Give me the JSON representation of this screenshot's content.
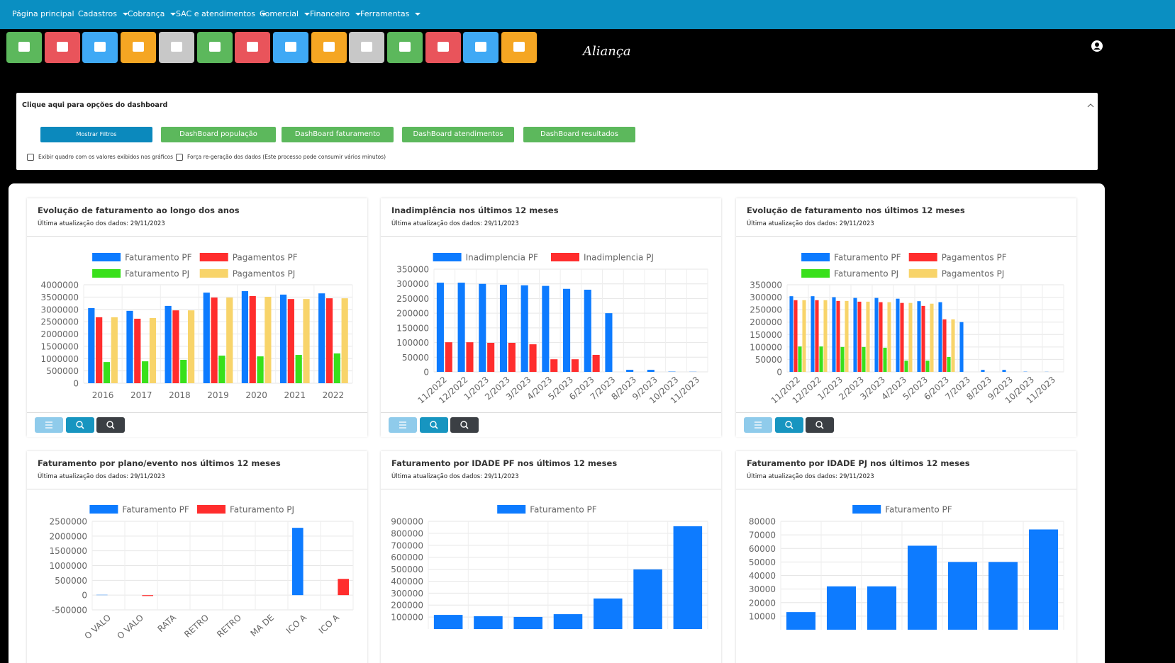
{
  "nav": {
    "items": [
      "Página principal",
      "Cadastros",
      "Cobrança",
      "SAC e atendimentos",
      "Comercial",
      "Financeiro",
      "Ferramentas"
    ]
  },
  "header": {
    "logo": "Aliança"
  },
  "panel": {
    "title": "Clique aqui para opções do dashboard",
    "buttons": [
      "Mostrar Filtros",
      "DashBoard população",
      "DashBoard faturamento",
      "DashBoard atendimentos",
      "DashBoard resultados"
    ],
    "checkboxes": [
      "Exibir quadro com os valores exibidos nos gráficos",
      "Força re-geração dos dados (Este processo pode consumir vários minutos)"
    ]
  },
  "chart_data": [
    {
      "type": "bar",
      "title": "Evolução de faturamento ao longo dos anos",
      "subtitle": "Última atualização dos dados: 29/11/2023",
      "categories": [
        "2016",
        "2017",
        "2018",
        "2019",
        "2020",
        "2021",
        "2022"
      ],
      "series": [
        {
          "name": "Faturamento PF",
          "color": "#0d7bff",
          "values": [
            3050000,
            2940000,
            3140000,
            3680000,
            3740000,
            3600000,
            3650000
          ]
        },
        {
          "name": "Pagamentos PF",
          "color": "#ff2d2d",
          "values": [
            2680000,
            2620000,
            2960000,
            3480000,
            3540000,
            3420000,
            3450000
          ]
        },
        {
          "name": "Faturamento PJ",
          "color": "#39e01b",
          "values": [
            860000,
            890000,
            950000,
            1120000,
            1090000,
            1150000,
            1210000
          ]
        },
        {
          "name": "Pagamentos PJ",
          "color": "#f8d46a",
          "values": [
            2680000,
            2650000,
            2960000,
            3480000,
            3510000,
            3420000,
            3450000
          ]
        }
      ],
      "ylim": [
        0,
        4000000
      ],
      "yticks": [
        0,
        500000,
        1000000,
        1500000,
        2000000,
        2500000,
        3000000,
        3500000,
        4000000
      ],
      "grid": true
    },
    {
      "type": "bar",
      "title": "Inadimplência nos últimos 12 meses",
      "subtitle": "Última atualização dos dados: 29/11/2023",
      "categories": [
        "11/2022",
        "12/2022",
        "1/2023",
        "2/2023",
        "3/2023",
        "4/2023",
        "5/2023",
        "6/2023",
        "7/2023",
        "8/2023",
        "9/2023",
        "10/2023",
        "11/2023"
      ],
      "series": [
        {
          "name": "Inadimplencia PF",
          "color": "#0d7bff",
          "values": [
            304000,
            304000,
            300000,
            297000,
            295000,
            293000,
            283000,
            280000,
            200000,
            7000,
            7000,
            1000,
            500
          ]
        },
        {
          "name": "Inadimplencia PJ",
          "color": "#ff2d2d",
          "values": [
            101000,
            101000,
            99000,
            99000,
            94000,
            43000,
            43000,
            58000,
            0,
            0,
            0,
            0,
            0
          ]
        }
      ],
      "ylim": [
        0,
        350000
      ],
      "yticks": [
        0,
        50000,
        100000,
        150000,
        200000,
        250000,
        300000,
        350000
      ],
      "grid": true
    },
    {
      "type": "bar",
      "title": "Evolução de faturamento nos últimos 12 meses",
      "subtitle": "Última atualização dos dados: 29/11/2023",
      "categories": [
        "11/2022",
        "12/2022",
        "1/2023",
        "2/2023",
        "3/2023",
        "4/2023",
        "5/2023",
        "6/2023",
        "7/2023",
        "8/2023",
        "9/2023",
        "10/2023",
        "11/2023"
      ],
      "series": [
        {
          "name": "Faturamento PF",
          "color": "#0d7bff",
          "values": [
            304000,
            304000,
            300000,
            297000,
            297000,
            294000,
            284000,
            280000,
            200000,
            8000,
            8000,
            1000,
            500
          ]
        },
        {
          "name": "Pagamentos PF",
          "color": "#ff2d2d",
          "values": [
            288000,
            288000,
            285000,
            282000,
            280000,
            277000,
            265000,
            211000,
            0,
            0,
            0,
            0,
            0
          ]
        },
        {
          "name": "Faturamento PJ",
          "color": "#39e01b",
          "values": [
            102000,
            102000,
            100000,
            100000,
            97000,
            45000,
            45000,
            60000,
            0,
            0,
            0,
            0,
            0
          ]
        },
        {
          "name": "Pagamentos PJ",
          "color": "#f8d46a",
          "values": [
            288000,
            288000,
            285000,
            282000,
            280000,
            277000,
            274000,
            211000,
            0,
            0,
            0,
            0,
            0
          ]
        }
      ],
      "ylim": [
        0,
        350000
      ],
      "yticks": [
        0,
        50000,
        100000,
        150000,
        200000,
        250000,
        300000,
        350000
      ],
      "grid": true
    },
    {
      "type": "bar",
      "title": "Faturamento por plano/evento nos últimos 12 meses",
      "subtitle": "Última atualização dos dados: 29/11/2023",
      "categories": [
        "O VALO",
        "O VALO",
        "RATA",
        "RETRO",
        "RETRO",
        "MA DE",
        "ICO A",
        "ICO A"
      ],
      "series": [
        {
          "name": "Faturamento PF",
          "color": "#0d7bff",
          "values": [
            10000,
            0,
            0,
            0,
            0,
            0,
            2280000,
            0
          ]
        },
        {
          "name": "Faturamento PJ",
          "color": "#ff2d2d",
          "values": [
            0,
            -30000,
            0,
            0,
            0,
            0,
            0,
            550000
          ]
        }
      ],
      "ylim": [
        -500000,
        2500000
      ],
      "yticks": [
        -500000,
        0,
        500000,
        1000000,
        1500000,
        2000000,
        2500000
      ],
      "grid": true
    },
    {
      "type": "bar",
      "title": "Faturamento por IDADE PF nos últimos 12 meses",
      "subtitle": "Última atualização dos dados: 29/11/2023",
      "series": [
        {
          "name": "Faturamento PF",
          "color": "#0d7bff",
          "values": [
            118000,
            107000,
            101000,
            124000,
            255000,
            498000,
            859000
          ]
        }
      ],
      "ylim": [
        0,
        900000
      ],
      "yticks": [
        100000,
        200000,
        300000,
        400000,
        500000,
        600000,
        700000,
        800000,
        900000
      ],
      "grid": true
    },
    {
      "type": "bar",
      "title": "Faturamento por IDADE PJ nos últimos 12 meses",
      "subtitle": "Última atualização dos dados: 29/11/2023",
      "series": [
        {
          "name": "Faturamento PF",
          "color": "#0d7bff",
          "values": [
            13000,
            32000,
            32000,
            62000,
            50000,
            50000,
            74000
          ]
        }
      ],
      "ylim": [
        0,
        80000
      ],
      "yticks": [
        10000,
        20000,
        30000,
        40000,
        50000,
        60000,
        70000,
        80000
      ],
      "grid": true
    }
  ]
}
